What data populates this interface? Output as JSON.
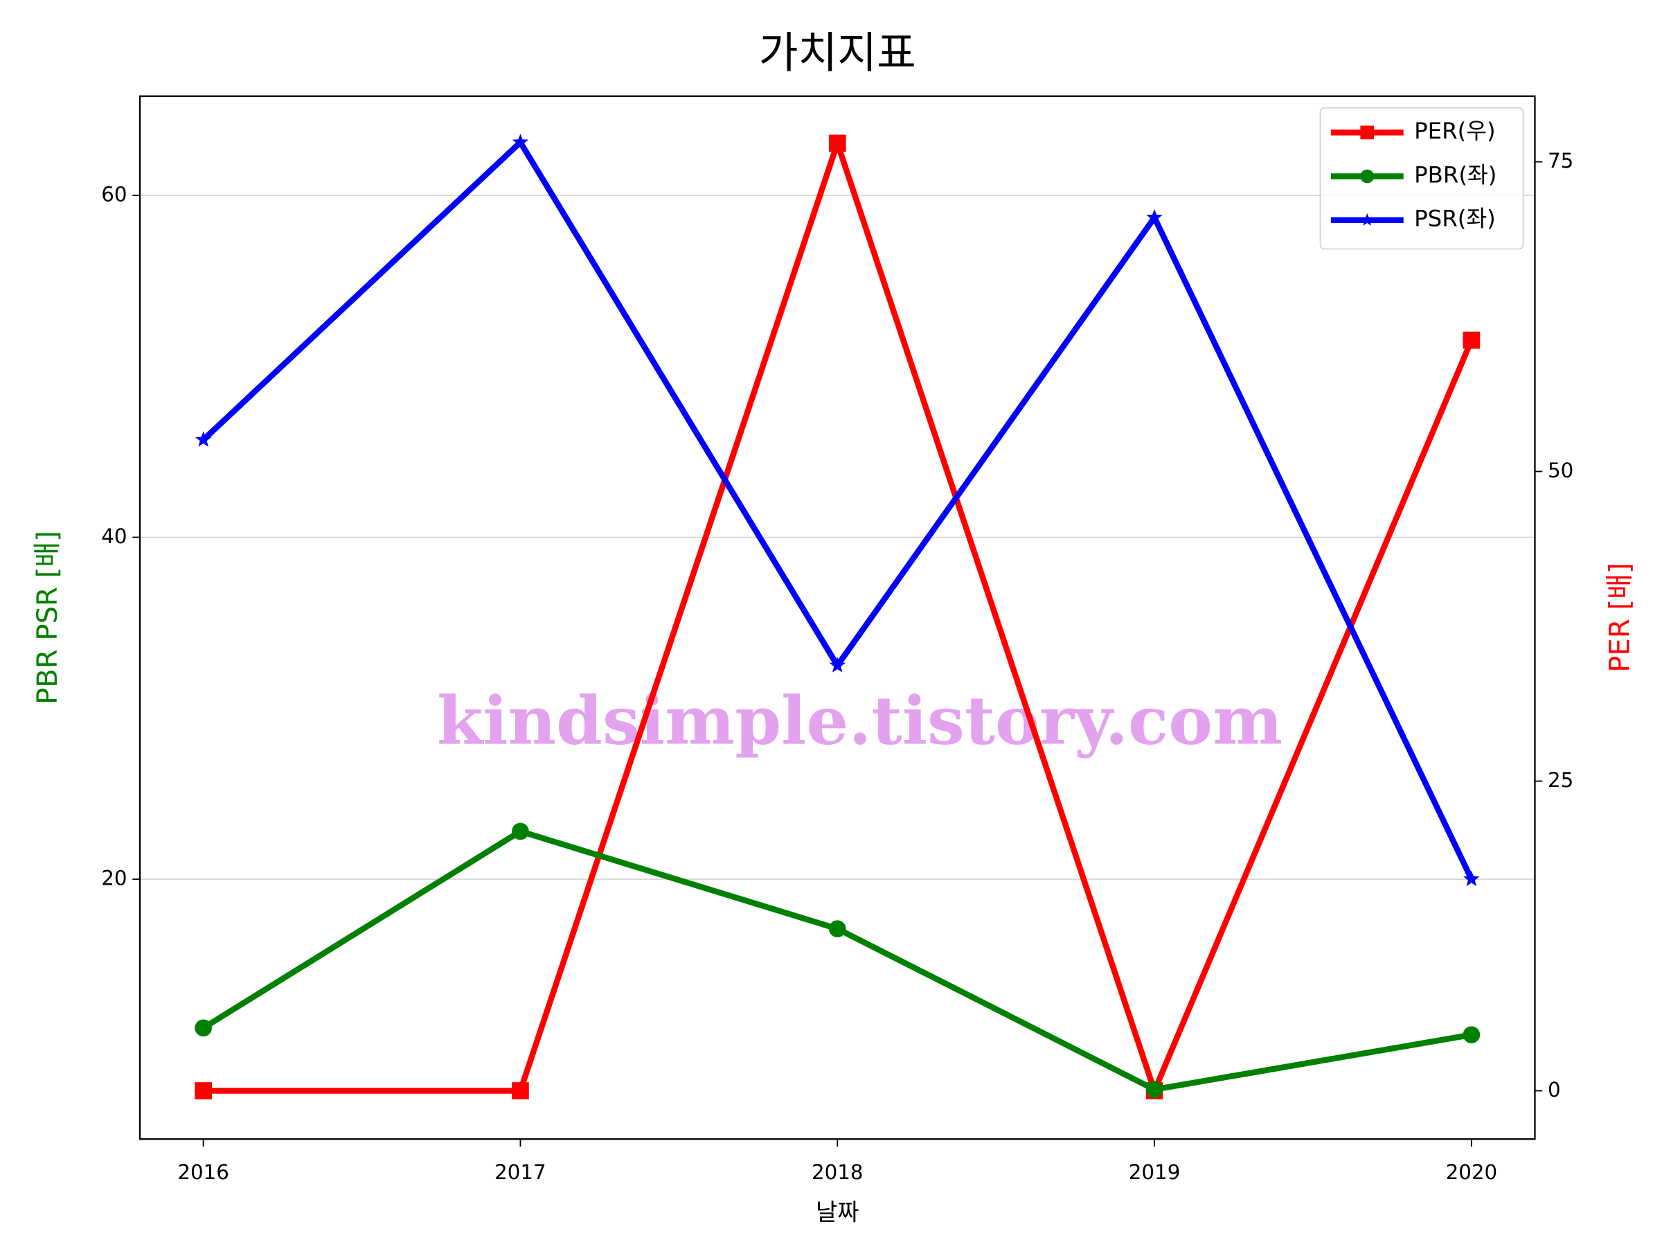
{
  "chart_data": {
    "type": "line",
    "title": "가치지표",
    "xlabel": "날짜",
    "ylabel": "PBR PSR [배]",
    "ylabel_color": "#008000",
    "y2label": "PER [배]",
    "y2label_color": "#ff0000",
    "x": [
      2016,
      2017,
      2018,
      2019,
      2020
    ],
    "xlim": [
      2015.8,
      2020.2
    ],
    "xticks": [
      2016,
      2017,
      2018,
      2019,
      2020
    ],
    "ylim": [
      4.8,
      65.8
    ],
    "yticks": [
      20,
      40,
      60
    ],
    "y2lim": [
      -3.9,
      80.3
    ],
    "y2ticks": [
      0,
      25,
      50,
      75
    ],
    "grid": true,
    "legend": "upper right",
    "annotation": "kindsimple.tistory.com",
    "series": [
      {
        "name": "PER(우)",
        "color": "#ff0000",
        "marker": "square",
        "axis": "y2",
        "values": [
          0,
          0,
          76.5,
          0,
          60.6
        ]
      },
      {
        "name": "PBR(좌)",
        "color": "#008000",
        "marker": "circle",
        "values": [
          11.3,
          22.8,
          17.1,
          7.7,
          10.9
        ]
      },
      {
        "name": "PSR(좌)",
        "color": "#0000ff",
        "marker": "star",
        "values": [
          45.7,
          63.1,
          32.5,
          58.7,
          20
        ]
      }
    ]
  }
}
